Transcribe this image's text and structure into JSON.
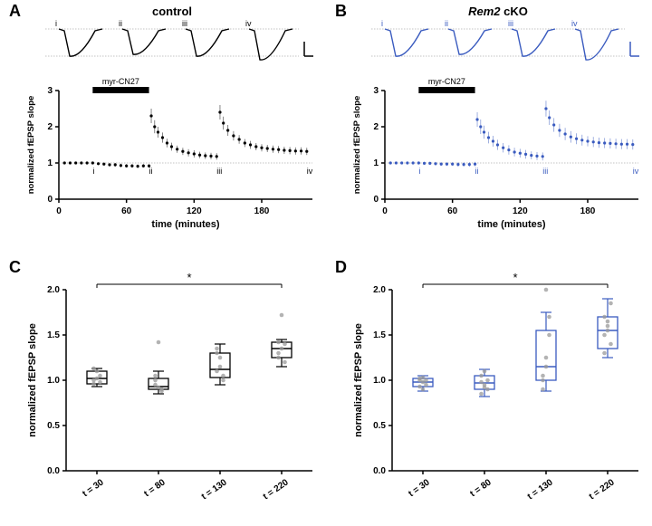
{
  "panels": {
    "A": {
      "label": "A",
      "title": "control"
    },
    "B": {
      "label": "B",
      "title": "Rem2"
    },
    "B_suffix": " cKO",
    "C": {
      "label": "C"
    },
    "D": {
      "label": "D"
    }
  },
  "colors": {
    "control": "#000000",
    "cko": "#3a5bbf",
    "dot_gray": "#999999",
    "bg": "#ffffff",
    "dotted": "#888888"
  },
  "timecourse": {
    "label_control": "myr-CN27",
    "label_cko": "myr-CN27",
    "ylabel": "normalized fEPSP slope",
    "xlabel": "time (minutes)",
    "yticks": [
      0,
      1,
      2,
      3
    ],
    "xticks": [
      0,
      60,
      120,
      180
    ],
    "roman": [
      "i",
      "ii",
      "iii",
      "iv"
    ],
    "bar_start": 30,
    "bar_end": 80,
    "control_data": [
      {
        "t": 5,
        "y": 1.0,
        "e": 0.03
      },
      {
        "t": 10,
        "y": 1.0,
        "e": 0.03
      },
      {
        "t": 15,
        "y": 1.0,
        "e": 0.03
      },
      {
        "t": 20,
        "y": 1.0,
        "e": 0.03
      },
      {
        "t": 25,
        "y": 1.0,
        "e": 0.03
      },
      {
        "t": 30,
        "y": 1.0,
        "e": 0.03
      },
      {
        "t": 35,
        "y": 0.98,
        "e": 0.04
      },
      {
        "t": 40,
        "y": 0.97,
        "e": 0.04
      },
      {
        "t": 45,
        "y": 0.95,
        "e": 0.04
      },
      {
        "t": 50,
        "y": 0.95,
        "e": 0.05
      },
      {
        "t": 55,
        "y": 0.93,
        "e": 0.05
      },
      {
        "t": 60,
        "y": 0.92,
        "e": 0.05
      },
      {
        "t": 65,
        "y": 0.92,
        "e": 0.05
      },
      {
        "t": 70,
        "y": 0.91,
        "e": 0.05
      },
      {
        "t": 75,
        "y": 0.92,
        "e": 0.05
      },
      {
        "t": 80,
        "y": 0.92,
        "e": 0.05
      },
      {
        "t": 82,
        "y": 2.3,
        "e": 0.2
      },
      {
        "t": 85,
        "y": 2.0,
        "e": 0.18
      },
      {
        "t": 88,
        "y": 1.85,
        "e": 0.15
      },
      {
        "t": 92,
        "y": 1.7,
        "e": 0.14
      },
      {
        "t": 96,
        "y": 1.55,
        "e": 0.12
      },
      {
        "t": 100,
        "y": 1.45,
        "e": 0.11
      },
      {
        "t": 105,
        "y": 1.38,
        "e": 0.1
      },
      {
        "t": 110,
        "y": 1.32,
        "e": 0.1
      },
      {
        "t": 115,
        "y": 1.28,
        "e": 0.1
      },
      {
        "t": 120,
        "y": 1.25,
        "e": 0.1
      },
      {
        "t": 125,
        "y": 1.22,
        "e": 0.09
      },
      {
        "t": 130,
        "y": 1.2,
        "e": 0.09
      },
      {
        "t": 135,
        "y": 1.19,
        "e": 0.09
      },
      {
        "t": 140,
        "y": 1.18,
        "e": 0.09
      },
      {
        "t": 143,
        "y": 2.4,
        "e": 0.2
      },
      {
        "t": 146,
        "y": 2.1,
        "e": 0.18
      },
      {
        "t": 150,
        "y": 1.9,
        "e": 0.15
      },
      {
        "t": 155,
        "y": 1.75,
        "e": 0.13
      },
      {
        "t": 160,
        "y": 1.65,
        "e": 0.12
      },
      {
        "t": 165,
        "y": 1.55,
        "e": 0.11
      },
      {
        "t": 170,
        "y": 1.5,
        "e": 0.11
      },
      {
        "t": 175,
        "y": 1.45,
        "e": 0.1
      },
      {
        "t": 180,
        "y": 1.42,
        "e": 0.1
      },
      {
        "t": 185,
        "y": 1.4,
        "e": 0.1
      },
      {
        "t": 190,
        "y": 1.38,
        "e": 0.1
      },
      {
        "t": 195,
        "y": 1.37,
        "e": 0.1
      },
      {
        "t": 200,
        "y": 1.35,
        "e": 0.1
      },
      {
        "t": 205,
        "y": 1.34,
        "e": 0.1
      },
      {
        "t": 210,
        "y": 1.33,
        "e": 0.1
      },
      {
        "t": 215,
        "y": 1.33,
        "e": 0.1
      },
      {
        "t": 220,
        "y": 1.32,
        "e": 0.1
      }
    ],
    "cko_data": [
      {
        "t": 5,
        "y": 1.0,
        "e": 0.03
      },
      {
        "t": 10,
        "y": 1.0,
        "e": 0.03
      },
      {
        "t": 15,
        "y": 1.0,
        "e": 0.03
      },
      {
        "t": 20,
        "y": 1.0,
        "e": 0.03
      },
      {
        "t": 25,
        "y": 1.0,
        "e": 0.03
      },
      {
        "t": 30,
        "y": 1.0,
        "e": 0.04
      },
      {
        "t": 35,
        "y": 0.99,
        "e": 0.04
      },
      {
        "t": 40,
        "y": 0.99,
        "e": 0.04
      },
      {
        "t": 45,
        "y": 0.98,
        "e": 0.05
      },
      {
        "t": 50,
        "y": 0.97,
        "e": 0.05
      },
      {
        "t": 55,
        "y": 0.97,
        "e": 0.05
      },
      {
        "t": 60,
        "y": 0.97,
        "e": 0.05
      },
      {
        "t": 65,
        "y": 0.96,
        "e": 0.06
      },
      {
        "t": 70,
        "y": 0.96,
        "e": 0.06
      },
      {
        "t": 75,
        "y": 0.96,
        "e": 0.06
      },
      {
        "t": 80,
        "y": 0.97,
        "e": 0.06
      },
      {
        "t": 82,
        "y": 2.2,
        "e": 0.2
      },
      {
        "t": 85,
        "y": 2.0,
        "e": 0.2
      },
      {
        "t": 88,
        "y": 1.85,
        "e": 0.18
      },
      {
        "t": 92,
        "y": 1.7,
        "e": 0.16
      },
      {
        "t": 96,
        "y": 1.6,
        "e": 0.15
      },
      {
        "t": 100,
        "y": 1.5,
        "e": 0.14
      },
      {
        "t": 105,
        "y": 1.42,
        "e": 0.13
      },
      {
        "t": 110,
        "y": 1.36,
        "e": 0.13
      },
      {
        "t": 115,
        "y": 1.3,
        "e": 0.12
      },
      {
        "t": 120,
        "y": 1.27,
        "e": 0.12
      },
      {
        "t": 125,
        "y": 1.24,
        "e": 0.12
      },
      {
        "t": 130,
        "y": 1.21,
        "e": 0.11
      },
      {
        "t": 135,
        "y": 1.19,
        "e": 0.11
      },
      {
        "t": 140,
        "y": 1.18,
        "e": 0.11
      },
      {
        "t": 143,
        "y": 2.5,
        "e": 0.22
      },
      {
        "t": 146,
        "y": 2.25,
        "e": 0.2
      },
      {
        "t": 150,
        "y": 2.05,
        "e": 0.19
      },
      {
        "t": 155,
        "y": 1.9,
        "e": 0.18
      },
      {
        "t": 160,
        "y": 1.8,
        "e": 0.17
      },
      {
        "t": 165,
        "y": 1.72,
        "e": 0.16
      },
      {
        "t": 170,
        "y": 1.67,
        "e": 0.15
      },
      {
        "t": 175,
        "y": 1.63,
        "e": 0.15
      },
      {
        "t": 180,
        "y": 1.6,
        "e": 0.14
      },
      {
        "t": 185,
        "y": 1.58,
        "e": 0.14
      },
      {
        "t": 190,
        "y": 1.56,
        "e": 0.14
      },
      {
        "t": 195,
        "y": 1.55,
        "e": 0.14
      },
      {
        "t": 200,
        "y": 1.54,
        "e": 0.14
      },
      {
        "t": 205,
        "y": 1.53,
        "e": 0.14
      },
      {
        "t": 210,
        "y": 1.52,
        "e": 0.14
      },
      {
        "t": 215,
        "y": 1.52,
        "e": 0.14
      },
      {
        "t": 220,
        "y": 1.51,
        "e": 0.14
      }
    ]
  },
  "boxplots": {
    "ylabel": "normalized fEPSP slope",
    "yticks": [
      0.0,
      0.5,
      1.0,
      1.5,
      2.0
    ],
    "xlabels": [
      "t = 30",
      "t = 80",
      "t = 130",
      "t = 220"
    ],
    "sig": "*",
    "C": {
      "color": "#000000",
      "boxes": [
        {
          "q1": 0.96,
          "med": 1.02,
          "q3": 1.1,
          "lo": 0.93,
          "hi": 1.13,
          "pts": [
            1.0,
            1.02,
            1.05,
            0.96,
            1.1,
            0.98,
            1.13
          ]
        },
        {
          "q1": 0.9,
          "med": 0.93,
          "q3": 1.02,
          "lo": 0.85,
          "hi": 1.1,
          "pts": [
            0.95,
            0.92,
            0.9,
            1.0,
            1.42,
            0.88,
            1.05
          ]
        },
        {
          "q1": 1.03,
          "med": 1.12,
          "q3": 1.3,
          "lo": 0.95,
          "hi": 1.4,
          "pts": [
            1.1,
            1.25,
            1.05,
            1.3,
            1.15,
            1.0,
            1.35
          ]
        },
        {
          "q1": 1.25,
          "med": 1.35,
          "q3": 1.42,
          "lo": 1.15,
          "hi": 1.45,
          "pts": [
            1.3,
            1.35,
            1.4,
            1.25,
            1.72,
            1.2,
            1.42
          ]
        }
      ]
    },
    "D": {
      "color": "#3a5bbf",
      "boxes": [
        {
          "q1": 0.93,
          "med": 0.98,
          "q3": 1.02,
          "lo": 0.88,
          "hi": 1.05,
          "pts": [
            1.0,
            0.98,
            0.95,
            1.02,
            0.9,
            1.0,
            0.93,
            1.03
          ]
        },
        {
          "q1": 0.9,
          "med": 0.97,
          "q3": 1.05,
          "lo": 0.82,
          "hi": 1.12,
          "pts": [
            0.98,
            0.95,
            1.0,
            0.85,
            1.1,
            0.9,
            1.05,
            0.92
          ]
        },
        {
          "q1": 1.0,
          "med": 1.15,
          "q3": 1.55,
          "lo": 0.88,
          "hi": 1.75,
          "pts": [
            1.0,
            1.15,
            1.5,
            0.9,
            2.0,
            1.7,
            1.05,
            1.25
          ]
        },
        {
          "q1": 1.35,
          "med": 1.55,
          "q3": 1.7,
          "lo": 1.25,
          "hi": 1.9,
          "pts": [
            1.5,
            1.6,
            1.85,
            1.3,
            1.65,
            1.4,
            1.7,
            1.55
          ]
        }
      ]
    }
  }
}
